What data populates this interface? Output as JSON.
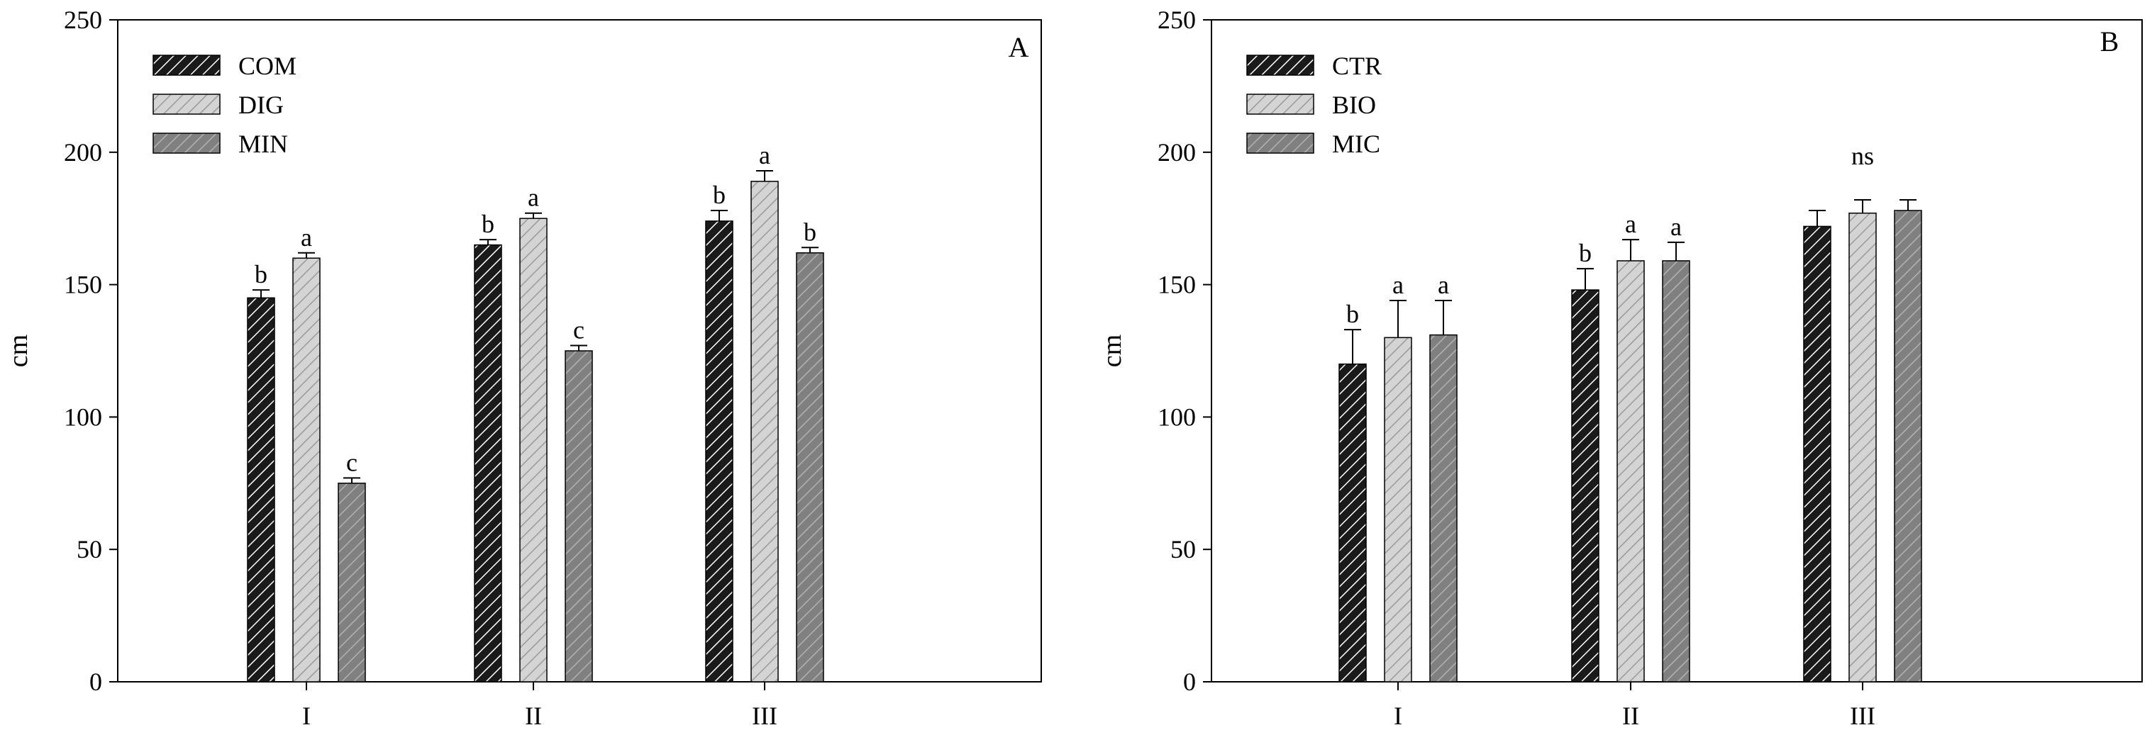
{
  "chart_data": [
    {
      "type": "bar",
      "panel_label": "A",
      "categories": [
        "I",
        "II",
        "III"
      ],
      "series": [
        {
          "name": "COM",
          "values": [
            145,
            165,
            174
          ],
          "errors": [
            3,
            2,
            4
          ],
          "letters": [
            "b",
            "b",
            "b"
          ],
          "color": "#1a1a1a",
          "hatch": "#ffffff"
        },
        {
          "name": "DIG",
          "values": [
            160,
            175,
            189
          ],
          "errors": [
            2,
            2,
            4
          ],
          "letters": [
            "a",
            "a",
            "a"
          ],
          "color": "#d4d4d4",
          "hatch": "#9a9a9a"
        },
        {
          "name": "MIN",
          "values": [
            75,
            125,
            162
          ],
          "errors": [
            2,
            2,
            2
          ],
          "letters": [
            "c",
            "c",
            "b"
          ],
          "color": "#808080",
          "hatch": "#b2b2b2"
        }
      ],
      "group_label": "",
      "xlabel": "",
      "ylabel": "cm",
      "ylim": [
        0,
        250
      ],
      "yticks": [
        0,
        50,
        100,
        150,
        200,
        250
      ],
      "legend_position": "top-left"
    },
    {
      "type": "bar",
      "panel_label": "B",
      "categories": [
        "I",
        "II",
        "III"
      ],
      "series": [
        {
          "name": "CTR",
          "values": [
            120,
            148,
            172
          ],
          "errors": [
            13,
            8,
            6
          ],
          "letters": [
            "b",
            "b",
            ""
          ],
          "color": "#1a1a1a",
          "hatch": "#ffffff"
        },
        {
          "name": "BIO",
          "values": [
            130,
            159,
            177
          ],
          "errors": [
            14,
            8,
            5
          ],
          "letters": [
            "a",
            "a",
            ""
          ],
          "color": "#d4d4d4",
          "hatch": "#9a9a9a"
        },
        {
          "name": "MIC",
          "values": [
            131,
            159,
            178
          ],
          "errors": [
            13,
            7,
            4
          ],
          "letters": [
            "a",
            "a",
            ""
          ],
          "color": "#808080",
          "hatch": "#b2b2b2"
        }
      ],
      "group_label": "ns",
      "group_label_category": 2,
      "xlabel": "",
      "ylabel": "cm",
      "ylim": [
        0,
        250
      ],
      "yticks": [
        0,
        50,
        100,
        150,
        200,
        250
      ],
      "legend_position": "top-left"
    }
  ]
}
